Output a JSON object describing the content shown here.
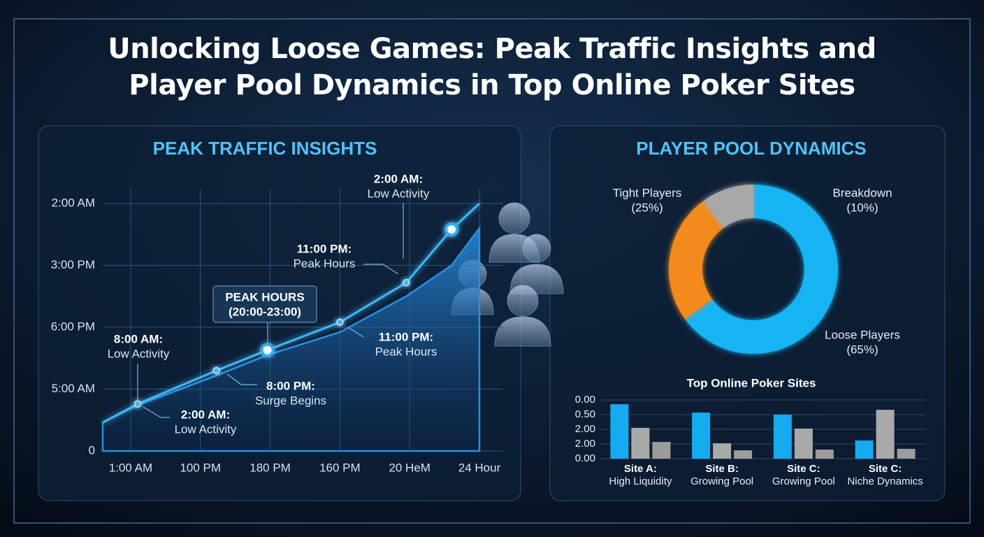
{
  "header": {
    "title": "Unlocking Loose Games: Peak Traffic Insights and Player Pool Dynamics in Top Online Poker Sites"
  },
  "chart_data": [
    {
      "type": "line",
      "title": "PEAK TRAFFIC INSIGHTS",
      "xlim": [
        0.6,
        6.0
      ],
      "xticks": [
        {
          "value": 1,
          "label": "1:00 AM"
        },
        {
          "value": 2,
          "label": "100 PM"
        },
        {
          "value": 3,
          "label": "180 PM"
        },
        {
          "value": 4,
          "label": "160 PM"
        },
        {
          "value": 5,
          "label": "20 HeM"
        },
        {
          "value": 6,
          "label": "24 Hour"
        }
      ],
      "ylim": [
        0,
        4
      ],
      "yticks": [
        0,
        {
          "value": 1,
          "label": "5:00 AM"
        },
        {
          "value": 2,
          "label": "6:00 PM"
        },
        {
          "value": 3,
          "label": "3:00 PM"
        },
        {
          "value": 4,
          "label": "2:00 AM"
        }
      ],
      "grid": true,
      "x": [
        0.6,
        1.1,
        2.23,
        2.96,
        4.0,
        4.95,
        5.6,
        6.0
      ],
      "series": [
        {
          "color": "#3fb6f5",
          "values": [
            0.46,
            0.76,
            1.3,
            1.63,
            2.08,
            2.72,
            3.58,
            4.0
          ]
        },
        {
          "color": "#2a8fe0",
          "fill": true,
          "values": [
            0.46,
            0.74,
            1.22,
            1.55,
            1.92,
            2.5,
            3.0,
            3.6
          ]
        }
      ],
      "annotations": [
        {
          "label": "2:00 AM:",
          "text": "Low Activity"
        },
        {
          "label": "11:00 PM:",
          "text": "Peak Hours"
        },
        {
          "label": "PEAK HOURS",
          "text": "(20:00-23:00)"
        },
        {
          "label": "8:00 AM:",
          "text": "Low Activity"
        },
        {
          "label": "11:00 PM:",
          "text": "Peak Hours"
        },
        {
          "label": "8:00 PM:",
          "text": "Surge Begins"
        },
        {
          "label": "2:00 AM:",
          "text": "Low Activity"
        }
      ]
    },
    {
      "type": "pie",
      "title": "PLAYER POOL DYNAMICS",
      "donut": true,
      "categories": [
        "Loose Players",
        "Tight Players",
        "Breakdown"
      ],
      "values": [
        65,
        25,
        10
      ],
      "value_labels": [
        "(65%)",
        "(25%)",
        "(10%)"
      ],
      "colors": [
        "#14b4f2",
        "#f28a1e",
        "#a8a8a8"
      ]
    },
    {
      "type": "bar",
      "title": "Top Online Poker Sites",
      "categories": [
        "Site A:",
        "Site B:",
        "Site C:",
        "Site C:"
      ],
      "category_notes": [
        "High Liquidity",
        "Growing Pool",
        "Growing Pool",
        "Niche Dynamics"
      ],
      "ylim": [
        0,
        4
      ],
      "yticks": [
        {
          "value": 0,
          "label": "0.00"
        },
        {
          "value": 1,
          "label": "2.00"
        },
        {
          "value": 2,
          "label": "2.00"
        },
        {
          "value": 3,
          "label": "0.50"
        },
        {
          "value": 4,
          "label": "0.00"
        }
      ],
      "grid": true,
      "series": [
        {
          "color": "#16aaf0",
          "values": [
            3.71,
            3.14,
            3.0,
            1.24
          ]
        },
        {
          "color": "#a9a9a9",
          "values": [
            2.1,
            1.05,
            2.05,
            3.33
          ]
        },
        {
          "color": "#9c9c9c",
          "values": [
            1.14,
            0.57,
            0.62,
            0.67
          ]
        }
      ]
    }
  ]
}
